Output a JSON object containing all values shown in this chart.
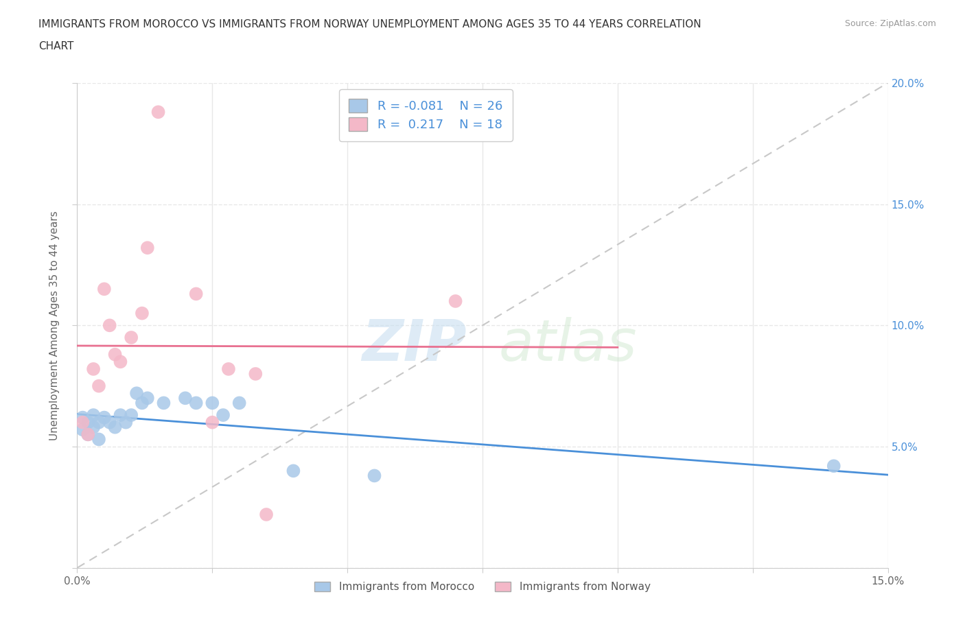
{
  "title": "IMMIGRANTS FROM MOROCCO VS IMMIGRANTS FROM NORWAY UNEMPLOYMENT AMONG AGES 35 TO 44 YEARS CORRELATION\nCHART",
  "source_text": "Source: ZipAtlas.com",
  "ylabel": "Unemployment Among Ages 35 to 44 years",
  "watermark_zip": "ZIP",
  "watermark_atlas": "atlas",
  "xlim": [
    0.0,
    0.15
  ],
  "ylim": [
    0.0,
    0.2
  ],
  "morocco_color": "#a8c8e8",
  "norway_color": "#f4b8c8",
  "morocco_line_color": "#4a90d9",
  "norway_line_color": "#e87090",
  "morocco_R": -0.081,
  "morocco_N": 26,
  "norway_R": 0.217,
  "norway_N": 18,
  "legend_label_morocco": "Immigrants from Morocco",
  "legend_label_norway": "Immigrants from Norway",
  "background_color": "#ffffff",
  "morocco_x": [
    0.001,
    0.001,
    0.002,
    0.002,
    0.003,
    0.003,
    0.004,
    0.004,
    0.005,
    0.006,
    0.007,
    0.008,
    0.009,
    0.01,
    0.011,
    0.012,
    0.013,
    0.016,
    0.02,
    0.022,
    0.025,
    0.027,
    0.03,
    0.04,
    0.055,
    0.14
  ],
  "morocco_y": [
    0.062,
    0.057,
    0.06,
    0.055,
    0.063,
    0.058,
    0.06,
    0.053,
    0.062,
    0.06,
    0.058,
    0.063,
    0.06,
    0.063,
    0.072,
    0.068,
    0.07,
    0.068,
    0.07,
    0.068,
    0.068,
    0.063,
    0.068,
    0.04,
    0.038,
    0.042
  ],
  "norway_x": [
    0.001,
    0.002,
    0.003,
    0.004,
    0.005,
    0.006,
    0.007,
    0.008,
    0.01,
    0.012,
    0.013,
    0.015,
    0.022,
    0.025,
    0.028,
    0.033,
    0.035,
    0.07
  ],
  "norway_y": [
    0.06,
    0.055,
    0.082,
    0.075,
    0.115,
    0.1,
    0.088,
    0.085,
    0.095,
    0.105,
    0.132,
    0.188,
    0.113,
    0.06,
    0.082,
    0.08,
    0.022,
    0.11
  ],
  "ref_line_color": "#c8c8c8",
  "grid_color": "#e8e8e8"
}
